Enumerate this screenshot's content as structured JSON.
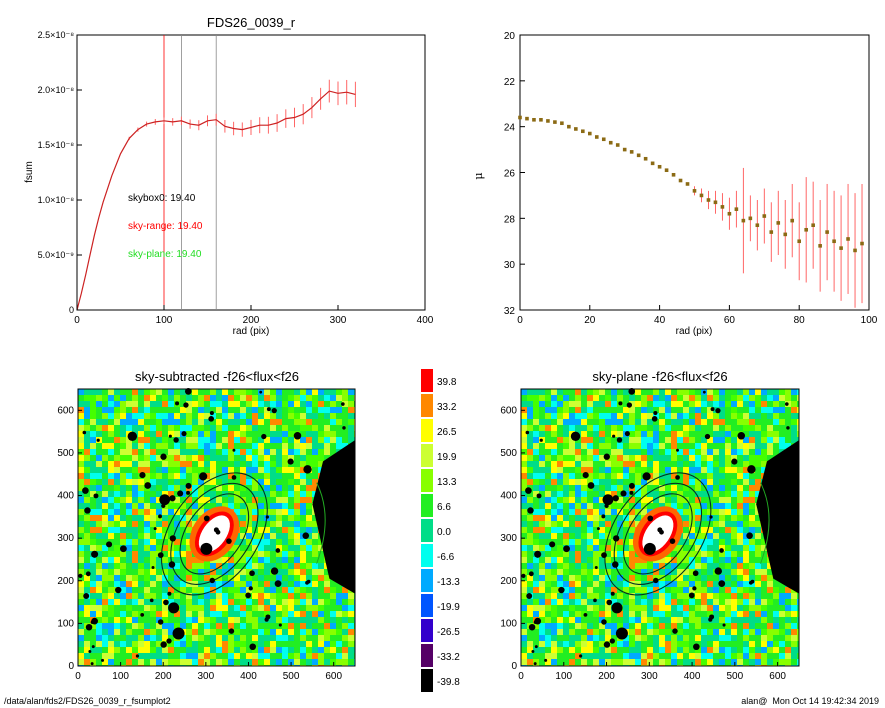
{
  "footer": {
    "path": "/data/alan/fds2/FDS26_0039_r_fsumplot2",
    "user": "alan@",
    "timestamp": "Mon Oct 14 19:42:34 2019"
  },
  "chart_data": [
    {
      "type": "line",
      "title": "FDS26_0039_r",
      "xlabel": "rad (pix)",
      "ylabel": "fsum",
      "xlim": [
        0,
        400
      ],
      "ylim": [
        0,
        2.5e-08
      ],
      "xticks": [
        "0",
        "100",
        "200",
        "300",
        "400"
      ],
      "yticks": [
        "0",
        "5.0×10⁻⁹",
        "1.0×10⁻⁸",
        "1.5×10⁻⁸",
        "2.0×10⁻⁸",
        "2.5×10⁻⁸"
      ],
      "vlines": [
        {
          "x": 100,
          "color": "#ff0000"
        },
        {
          "x": 120,
          "color": "#888888"
        },
        {
          "x": 160,
          "color": "#888888"
        }
      ],
      "annotations": [
        {
          "text": "skybox0: 19.40",
          "color": "#000000"
        },
        {
          "text": "sky-range: 19.40",
          "color": "#ff0000"
        },
        {
          "text": "sky-plane: 19.40",
          "color": "#22dd22"
        }
      ],
      "x": [
        0,
        5,
        10,
        15,
        20,
        25,
        30,
        40,
        50,
        60,
        70,
        80,
        90,
        100,
        110,
        120,
        130,
        140,
        150,
        160,
        170,
        180,
        190,
        200,
        210,
        220,
        230,
        240,
        250,
        260,
        270,
        280,
        290,
        300,
        310,
        320
      ],
      "values": [
        0,
        1.5e-09,
        3.2e-09,
        5e-09,
        6.8e-09,
        8.4e-09,
        9.8e-09,
        1.22e-08,
        1.42e-08,
        1.56e-08,
        1.64e-08,
        1.69e-08,
        1.71e-08,
        1.72e-08,
        1.71e-08,
        1.72e-08,
        1.69e-08,
        1.68e-08,
        1.72e-08,
        1.73e-08,
        1.67e-08,
        1.65e-08,
        1.64e-08,
        1.66e-08,
        1.68e-08,
        1.68e-08,
        1.7e-08,
        1.74e-08,
        1.75e-08,
        1.78e-08,
        1.84e-08,
        1.92e-08,
        1.99e-08,
        1.97e-08,
        1.98e-08,
        1.96e-08
      ]
    },
    {
      "type": "scatter",
      "title": "",
      "xlabel": "rad (pix)",
      "ylabel": "μ",
      "xlim": [
        0,
        100
      ],
      "ylim": [
        32,
        20
      ],
      "xticks": [
        "0",
        "20",
        "40",
        "60",
        "80",
        "100"
      ],
      "yticks": [
        "20",
        "22",
        "24",
        "26",
        "28",
        "30",
        "32"
      ],
      "x": [
        0,
        2,
        4,
        6,
        8,
        10,
        12,
        14,
        16,
        18,
        20,
        22,
        24,
        26,
        28,
        30,
        32,
        34,
        36,
        38,
        40,
        42,
        44,
        46,
        48,
        50,
        52,
        54,
        56,
        58,
        60,
        62,
        64,
        66,
        68,
        70,
        72,
        74,
        76,
        78,
        80,
        82,
        84,
        86,
        88,
        90,
        92,
        94,
        96,
        98
      ],
      "values": [
        23.6,
        23.65,
        23.7,
        23.7,
        23.75,
        23.8,
        23.85,
        24.0,
        24.1,
        24.2,
        24.3,
        24.45,
        24.55,
        24.7,
        24.8,
        25.0,
        25.1,
        25.25,
        25.4,
        25.6,
        25.75,
        25.9,
        26.1,
        26.35,
        26.5,
        26.8,
        27.0,
        27.2,
        27.3,
        27.5,
        27.8,
        27.6,
        28.1,
        28.0,
        28.3,
        27.9,
        28.6,
        28.2,
        28.7,
        28.1,
        29.0,
        28.5,
        28.3,
        29.2,
        28.6,
        29.0,
        29.3,
        28.9,
        29.4,
        29.1
      ]
    },
    {
      "type": "heatmap",
      "title": "sky-subtracted -f26<flux<f26",
      "xlim": [
        0,
        650
      ],
      "ylim": [
        0,
        650
      ],
      "xticks": [
        "0",
        "100",
        "200",
        "300",
        "400",
        "500",
        "600"
      ],
      "yticks": [
        "0",
        "100",
        "200",
        "300",
        "400",
        "500",
        "600"
      ]
    },
    {
      "type": "heatmap",
      "title": "sky-plane -f26<flux<f26",
      "xlim": [
        0,
        650
      ],
      "ylim": [
        0,
        650
      ],
      "xticks": [
        "0",
        "100",
        "200",
        "300",
        "400",
        "500",
        "600"
      ],
      "yticks": [
        "0",
        "100",
        "200",
        "300",
        "400",
        "500",
        "600"
      ]
    }
  ],
  "colorbar": {
    "labels": [
      "39.8",
      "33.2",
      "26.5",
      "19.9",
      "13.3",
      "6.6",
      "0.0",
      "-6.6",
      "-13.3",
      "-19.9",
      "-26.5",
      "-33.2",
      "-39.8"
    ],
    "colors": [
      "#ff0000",
      "#ff8800",
      "#ffff00",
      "#ccff33",
      "#88ff00",
      "#22ee22",
      "#00dd88",
      "#00ffee",
      "#00aaff",
      "#0055ff",
      "#3300cc",
      "#550066",
      "#000000"
    ]
  }
}
